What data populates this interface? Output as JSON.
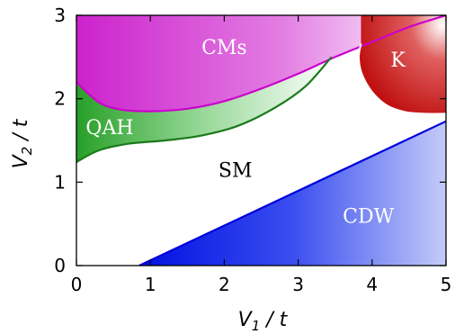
{
  "chart_data": {
    "type": "area",
    "xlabel_var": "V",
    "xlabel_sub": "1",
    "xlabel_unit": " / t",
    "ylabel_var": "V",
    "ylabel_sub": "2",
    "ylabel_unit": " / t",
    "xlim": [
      0,
      5
    ],
    "ylim": [
      0,
      3
    ],
    "xticks": [
      "0",
      "1",
      "2",
      "3",
      "4",
      "5"
    ],
    "yticks": [
      "0",
      "1",
      "2",
      "3"
    ],
    "grid": false,
    "colors": {
      "cms": "#d12bd1",
      "cms_border": "#cc00cc",
      "qah": "#2aa02a",
      "qah_border": "#1a7a1a",
      "k": "#c41a1a",
      "cdw": "#0a1ee6",
      "cdw_border": "#0000dd"
    },
    "regions": [
      {
        "name": "CMs",
        "label_at": [
          2.0,
          2.62
        ],
        "label_color": "#ffffff",
        "boundary": [
          [
            0,
            2.2
          ],
          [
            0.3,
            1.96
          ],
          [
            0.6,
            1.87
          ],
          [
            1.0,
            1.85
          ],
          [
            1.5,
            1.88
          ],
          [
            2.0,
            1.97
          ],
          [
            2.5,
            2.12
          ],
          [
            3.0,
            2.3
          ],
          [
            3.5,
            2.5
          ],
          [
            4.0,
            2.68
          ],
          [
            4.5,
            2.86
          ],
          [
            5.0,
            3.0
          ]
        ]
      },
      {
        "name": "QAH",
        "label_at": [
          0.45,
          1.66
        ],
        "label_color": "#ffffff",
        "boundary": [
          [
            0,
            1.24
          ],
          [
            0.3,
            1.38
          ],
          [
            0.7,
            1.46
          ],
          [
            1.2,
            1.5
          ],
          [
            1.7,
            1.56
          ],
          [
            2.2,
            1.68
          ],
          [
            2.7,
            1.9
          ],
          [
            3.1,
            2.15
          ],
          [
            3.45,
            2.5
          ]
        ]
      },
      {
        "name": "K",
        "label_at": [
          4.35,
          2.47
        ],
        "label_color": "#ffffff",
        "boundary": [
          [
            3.85,
            2.66
          ],
          [
            3.82,
            2.5
          ],
          [
            3.86,
            2.3
          ],
          [
            4.0,
            2.08
          ],
          [
            4.2,
            1.92
          ],
          [
            4.45,
            1.84
          ],
          [
            4.7,
            1.82
          ],
          [
            5.0,
            1.82
          ]
        ]
      },
      {
        "name": "SM",
        "label_at": [
          2.15,
          1.15
        ],
        "label_color": "#000000",
        "boundary": []
      },
      {
        "name": "CDW",
        "label_at": [
          3.95,
          0.6
        ],
        "label_color": "#ffffff",
        "boundary": [
          [
            0.85,
            0
          ],
          [
            5.0,
            1.73
          ]
        ]
      }
    ]
  }
}
